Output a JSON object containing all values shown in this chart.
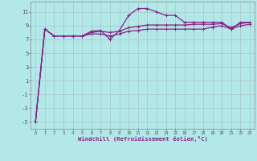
{
  "xlabel": "Windchill (Refroidissement éolien,°C)",
  "background_color": "#b2e8e8",
  "grid_color": "#aacccc",
  "line_color": "#882288",
  "x": [
    0,
    1,
    2,
    3,
    4,
    5,
    6,
    7,
    8,
    9,
    10,
    11,
    12,
    13,
    14,
    15,
    16,
    17,
    18,
    19,
    20,
    21,
    22,
    23
  ],
  "line1": [
    -5,
    8.5,
    7.5,
    7.5,
    7.5,
    7.5,
    8.2,
    8.3,
    7.0,
    8.3,
    10.5,
    11.5,
    11.5,
    11.0,
    10.5,
    10.5,
    9.5,
    9.5,
    9.5,
    9.5,
    9.5,
    8.5,
    9.5,
    9.5
  ],
  "line2": [
    -5,
    8.5,
    7.5,
    7.5,
    7.5,
    7.5,
    7.8,
    7.8,
    7.5,
    7.8,
    8.2,
    8.3,
    8.5,
    8.5,
    8.5,
    8.5,
    8.5,
    8.5,
    8.5,
    8.8,
    9.0,
    8.5,
    9.0,
    9.2
  ],
  "line3": [
    -5,
    8.5,
    7.5,
    7.5,
    7.5,
    7.5,
    8.0,
    8.2,
    8.0,
    8.2,
    8.7,
    8.9,
    9.1,
    9.1,
    9.1,
    9.1,
    9.1,
    9.2,
    9.2,
    9.2,
    9.3,
    8.7,
    9.3,
    9.5
  ],
  "ylim": [
    -6,
    12.5
  ],
  "xlim": [
    -0.5,
    23.5
  ],
  "yticks": [
    -5,
    -3,
    -1,
    1,
    3,
    5,
    7,
    9,
    11
  ],
  "xticks": [
    0,
    1,
    2,
    3,
    4,
    5,
    6,
    7,
    8,
    9,
    10,
    11,
    12,
    13,
    14,
    15,
    16,
    17,
    18,
    19,
    20,
    21,
    22,
    23
  ]
}
